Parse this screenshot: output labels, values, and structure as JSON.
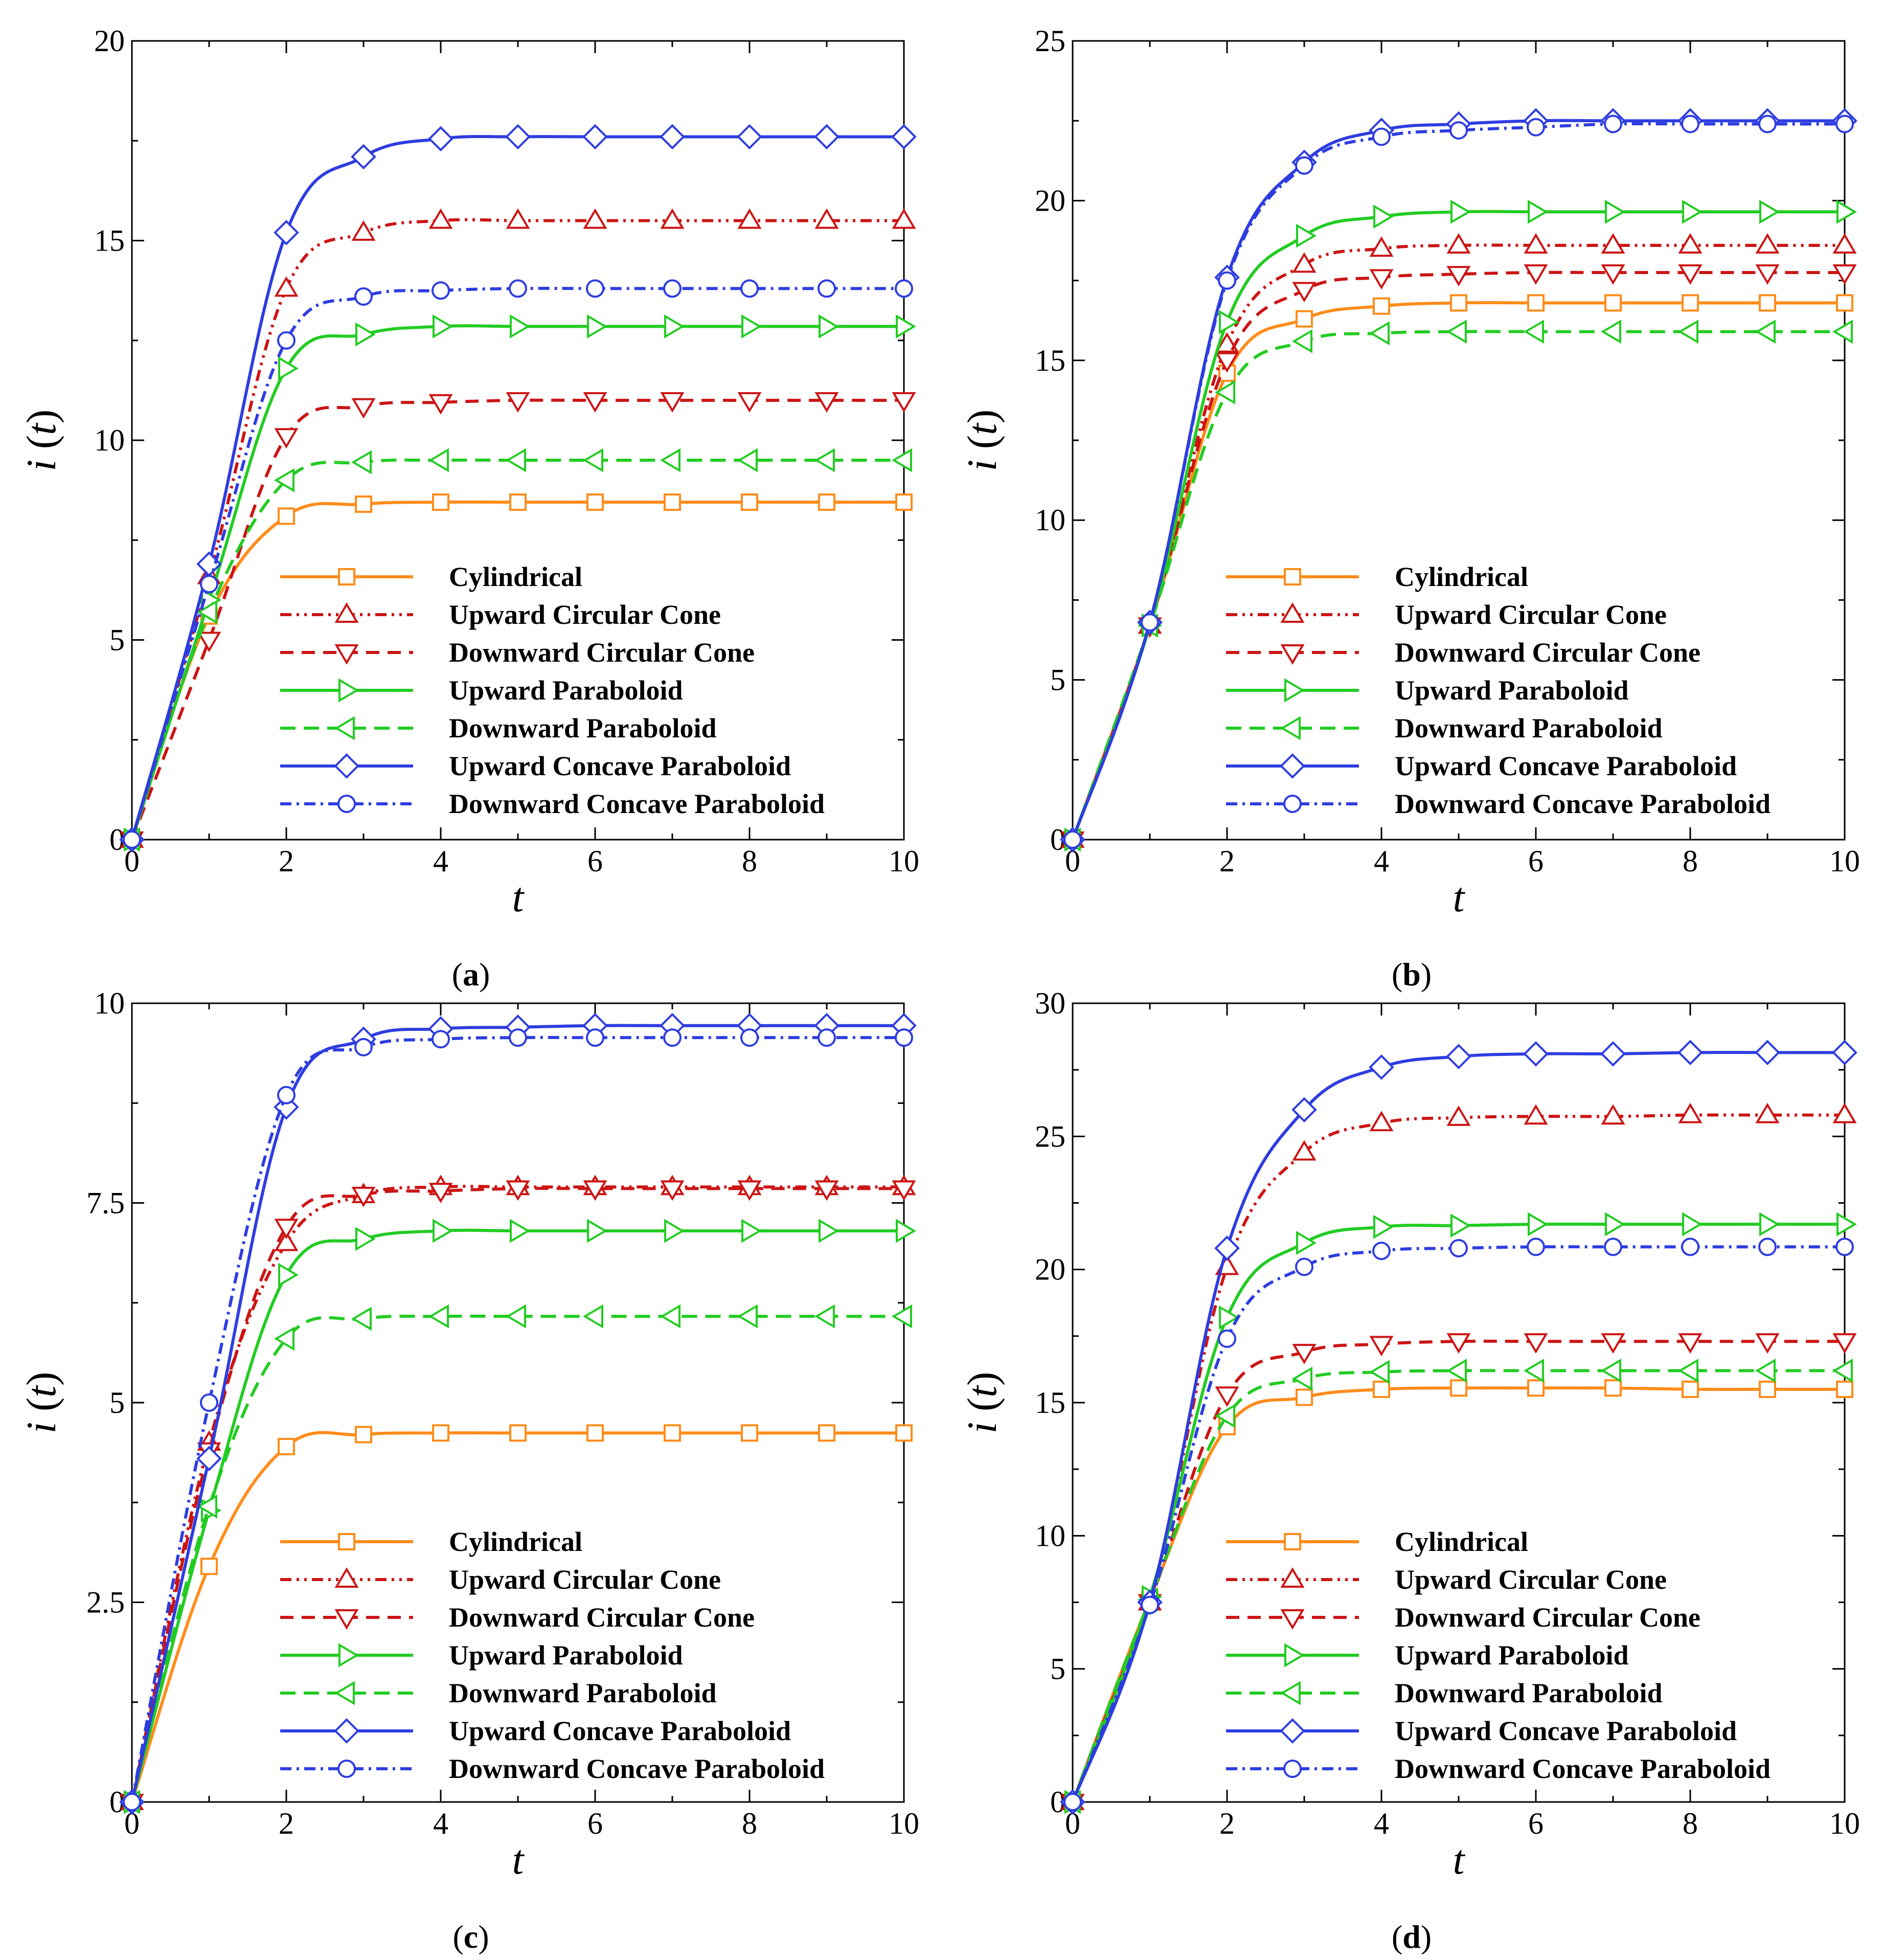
{
  "series_styles": [
    {
      "key": "cyl",
      "color": "#FF8C1A",
      "dash": "",
      "marker": "square"
    },
    {
      "key": "ucc",
      "color": "#CC1414",
      "dash": "22 10 5 10 5 10",
      "marker": "triangle-up"
    },
    {
      "key": "dcc",
      "color": "#CC1414",
      "dash": "26 16",
      "marker": "triangle-down"
    },
    {
      "key": "upb",
      "color": "#22CC22",
      "dash": "",
      "marker": "triangle-right"
    },
    {
      "key": "dpb",
      "color": "#22CC22",
      "dash": "30 16",
      "marker": "triangle-left"
    },
    {
      "key": "ucp",
      "color": "#2E3DE0",
      "dash": "",
      "marker": "diamond"
    },
    {
      "key": "dcp",
      "color": "#2E3DE0",
      "dash": "22 10 5 10",
      "marker": "circle"
    }
  ],
  "chart_data": [
    {
      "panel_label": "a",
      "type": "line",
      "xlabel": "t",
      "ylabel_i": "i",
      "ylabel_t": "t",
      "xlim": [
        0,
        10
      ],
      "ylim": [
        0,
        20
      ],
      "xticks": [
        "0",
        "2",
        "4",
        "6",
        "8",
        "10"
      ],
      "yticks": [
        "0",
        "5",
        "10",
        "15",
        "20"
      ],
      "x": [
        0,
        1,
        2,
        3,
        4,
        5,
        6,
        7,
        8,
        9,
        10
      ],
      "series": [
        {
          "name": "Cylindrical",
          "values": [
            0,
            5.6,
            8.1,
            8.4,
            8.45,
            8.45,
            8.45,
            8.45,
            8.45,
            8.45,
            8.45
          ]
        },
        {
          "name": "Upward Circular Cone",
          "values": [
            0,
            6.6,
            13.8,
            15.2,
            15.5,
            15.5,
            15.5,
            15.5,
            15.5,
            15.5,
            15.5
          ]
        },
        {
          "name": "Downward Circular Cone",
          "values": [
            0,
            5.0,
            10.1,
            10.85,
            10.95,
            11.0,
            11.0,
            11.0,
            11.0,
            11.0,
            11.0
          ]
        },
        {
          "name": "Upward Paraboloid",
          "values": [
            0,
            6.0,
            11.8,
            12.65,
            12.85,
            12.85,
            12.85,
            12.85,
            12.85,
            12.85,
            12.85
          ]
        },
        {
          "name": "Downward Paraboloid",
          "values": [
            0,
            5.7,
            9.0,
            9.45,
            9.5,
            9.5,
            9.5,
            9.5,
            9.5,
            9.5,
            9.5
          ]
        },
        {
          "name": "Upward Concave Paraboloid",
          "values": [
            0,
            6.9,
            15.2,
            17.1,
            17.55,
            17.6,
            17.6,
            17.6,
            17.6,
            17.6,
            17.6
          ]
        },
        {
          "name": "Downward Concave Paraboloid",
          "values": [
            0,
            6.4,
            12.5,
            13.6,
            13.75,
            13.8,
            13.8,
            13.8,
            13.8,
            13.8,
            13.8
          ]
        }
      ]
    },
    {
      "panel_label": "b",
      "type": "line",
      "xlabel": "t",
      "ylabel_i": "i",
      "ylabel_t": "t",
      "xlim": [
        0,
        10
      ],
      "ylim": [
        0,
        25
      ],
      "xticks": [
        "0",
        "2",
        "4",
        "6",
        "8",
        "10"
      ],
      "yticks": [
        "0",
        "5",
        "10",
        "15",
        "20",
        "25"
      ],
      "x": [
        0,
        1,
        2,
        3,
        4,
        5,
        6,
        7,
        8,
        9,
        10
      ],
      "series": [
        {
          "name": "Cylindrical",
          "values": [
            0,
            6.7,
            14.6,
            16.3,
            16.7,
            16.8,
            16.8,
            16.8,
            16.8,
            16.8,
            16.8
          ]
        },
        {
          "name": "Upward Circular Cone",
          "values": [
            0,
            6.7,
            15.5,
            18.0,
            18.5,
            18.6,
            18.6,
            18.6,
            18.6,
            18.6,
            18.6
          ]
        },
        {
          "name": "Downward Circular Cone",
          "values": [
            0,
            6.7,
            15.0,
            17.2,
            17.6,
            17.7,
            17.75,
            17.75,
            17.75,
            17.75,
            17.75
          ]
        },
        {
          "name": "Upward Paraboloid",
          "values": [
            0,
            6.7,
            16.2,
            18.9,
            19.5,
            19.65,
            19.65,
            19.65,
            19.65,
            19.65,
            19.65
          ]
        },
        {
          "name": "Downward Paraboloid",
          "values": [
            0,
            6.7,
            14.0,
            15.6,
            15.85,
            15.9,
            15.9,
            15.9,
            15.9,
            15.9,
            15.9
          ]
        },
        {
          "name": "Upward Concave Paraboloid",
          "values": [
            0,
            6.8,
            17.6,
            21.2,
            22.2,
            22.4,
            22.5,
            22.5,
            22.5,
            22.5,
            22.5
          ]
        },
        {
          "name": "Downward Concave Paraboloid",
          "values": [
            0,
            6.8,
            17.5,
            21.1,
            22.0,
            22.2,
            22.3,
            22.4,
            22.4,
            22.4,
            22.4
          ]
        }
      ]
    },
    {
      "panel_label": "c",
      "type": "line",
      "xlabel": "t",
      "ylabel_i": "i",
      "ylabel_t": "t",
      "xlim": [
        0,
        10
      ],
      "ylim": [
        0,
        10
      ],
      "xticks": [
        "0",
        "2",
        "4",
        "6",
        "8",
        "10"
      ],
      "yticks": [
        "0",
        "2.5",
        "5",
        "7.5",
        "10"
      ],
      "x": [
        0,
        1,
        2,
        3,
        4,
        5,
        6,
        7,
        8,
        9,
        10
      ],
      "series": [
        {
          "name": "Cylindrical",
          "values": [
            0,
            2.95,
            4.45,
            4.6,
            4.62,
            4.62,
            4.62,
            4.62,
            4.62,
            4.62,
            4.62
          ]
        },
        {
          "name": "Upward Circular Cone",
          "values": [
            0,
            4.5,
            7.0,
            7.6,
            7.7,
            7.7,
            7.7,
            7.7,
            7.7,
            7.7,
            7.7
          ]
        },
        {
          "name": "Downward Circular Cone",
          "values": [
            0,
            4.4,
            7.2,
            7.6,
            7.65,
            7.68,
            7.68,
            7.68,
            7.68,
            7.68,
            7.68
          ]
        },
        {
          "name": "Upward Paraboloid",
          "values": [
            0,
            3.65,
            6.6,
            7.05,
            7.15,
            7.15,
            7.15,
            7.15,
            7.15,
            7.15,
            7.15
          ]
        },
        {
          "name": "Downward Paraboloid",
          "values": [
            0,
            3.7,
            5.8,
            6.05,
            6.08,
            6.08,
            6.08,
            6.08,
            6.08,
            6.08,
            6.08
          ]
        },
        {
          "name": "Upward Concave Paraboloid",
          "values": [
            0,
            4.3,
            8.7,
            9.55,
            9.68,
            9.7,
            9.72,
            9.72,
            9.72,
            9.72,
            9.72
          ]
        },
        {
          "name": "Downward Concave Paraboloid",
          "values": [
            0,
            5.0,
            8.85,
            9.45,
            9.55,
            9.57,
            9.57,
            9.57,
            9.57,
            9.57,
            9.57
          ]
        }
      ]
    },
    {
      "panel_label": "d",
      "type": "line",
      "xlabel": "t",
      "ylabel_i": "i",
      "ylabel_t": "t",
      "xlim": [
        0,
        10
      ],
      "ylim": [
        0,
        30
      ],
      "xticks": [
        "0",
        "2",
        "4",
        "6",
        "8",
        "10"
      ],
      "yticks": [
        "0",
        "5",
        "10",
        "15",
        "20",
        "25",
        "30"
      ],
      "x": [
        0,
        1,
        2,
        3,
        4,
        5,
        6,
        7,
        8,
        9,
        10
      ],
      "series": [
        {
          "name": "Cylindrical",
          "values": [
            0,
            7.6,
            14.1,
            15.2,
            15.5,
            15.55,
            15.55,
            15.55,
            15.5,
            15.5,
            15.5
          ]
        },
        {
          "name": "Upward Circular Cone",
          "values": [
            0,
            7.5,
            20.1,
            24.4,
            25.5,
            25.7,
            25.75,
            25.75,
            25.8,
            25.8,
            25.8
          ]
        },
        {
          "name": "Downward Circular Cone",
          "values": [
            0,
            7.5,
            15.3,
            16.9,
            17.2,
            17.3,
            17.3,
            17.3,
            17.3,
            17.3,
            17.3
          ]
        },
        {
          "name": "Upward Paraboloid",
          "values": [
            0,
            7.7,
            18.2,
            21.0,
            21.6,
            21.65,
            21.7,
            21.7,
            21.7,
            21.7,
            21.7
          ]
        },
        {
          "name": "Downward Paraboloid",
          "values": [
            0,
            7.6,
            14.5,
            15.9,
            16.15,
            16.2,
            16.2,
            16.2,
            16.2,
            16.2,
            16.2
          ]
        },
        {
          "name": "Upward Concave Paraboloid",
          "values": [
            0,
            7.5,
            20.8,
            26.0,
            27.6,
            28.0,
            28.1,
            28.1,
            28.15,
            28.15,
            28.15
          ]
        },
        {
          "name": "Downward Concave Paraboloid",
          "values": [
            0,
            7.4,
            17.4,
            20.1,
            20.7,
            20.8,
            20.85,
            20.85,
            20.85,
            20.85,
            20.85
          ]
        }
      ]
    }
  ]
}
